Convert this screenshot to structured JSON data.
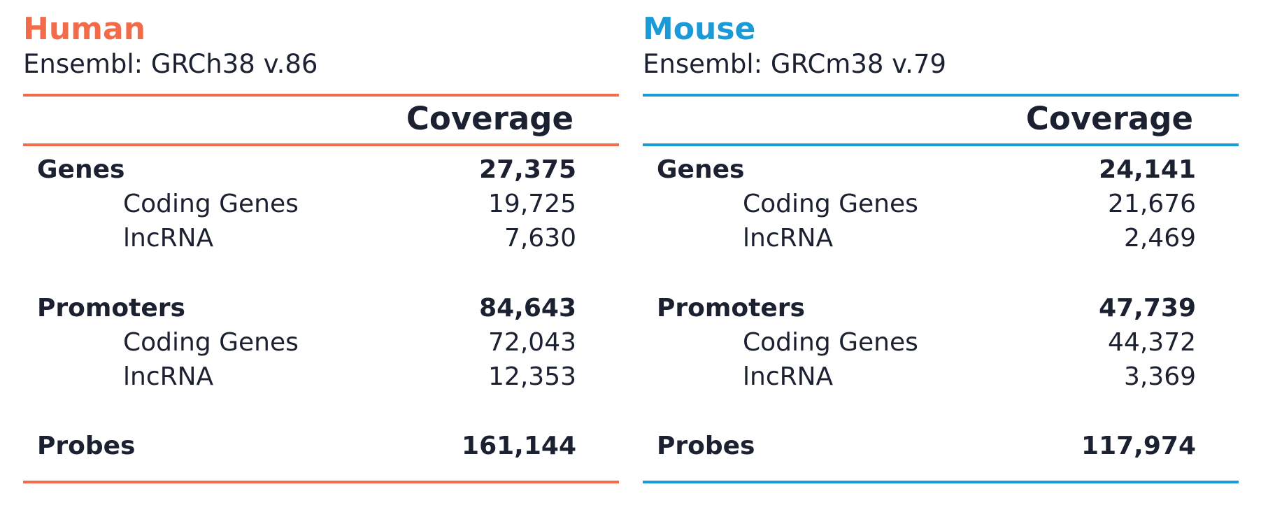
{
  "colors": {
    "human_accent": "#f26b4b",
    "mouse_accent": "#1a9ad6",
    "text": "#1b2130"
  },
  "human": {
    "species": "Human",
    "assembly": "Ensembl: GRCh38 v.86",
    "column_header": "Coverage",
    "genes": {
      "label": "Genes",
      "value": "27,375"
    },
    "genes_coding": {
      "label": "Coding Genes",
      "value": "19,725"
    },
    "genes_lncrna": {
      "label": "lncRNA",
      "value": "7,630"
    },
    "promoters": {
      "label": "Promoters",
      "value": "84,643"
    },
    "promoters_coding": {
      "label": "Coding Genes",
      "value": "72,043"
    },
    "promoters_lncrna": {
      "label": "lncRNA",
      "value": "12,353"
    },
    "probes": {
      "label": "Probes",
      "value": "161,144"
    }
  },
  "mouse": {
    "species": "Mouse",
    "assembly": "Ensembl: GRCm38 v.79",
    "column_header": "Coverage",
    "genes": {
      "label": "Genes",
      "value": "24,141"
    },
    "genes_coding": {
      "label": "Coding Genes",
      "value": "21,676"
    },
    "genes_lncrna": {
      "label": "lncRNA",
      "value": "2,469"
    },
    "promoters": {
      "label": "Promoters",
      "value": "47,739"
    },
    "promoters_coding": {
      "label": "Coding Genes",
      "value": "44,372"
    },
    "promoters_lncrna": {
      "label": "lncRNA",
      "value": "3,369"
    },
    "probes": {
      "label": "Probes",
      "value": "117,974"
    }
  }
}
